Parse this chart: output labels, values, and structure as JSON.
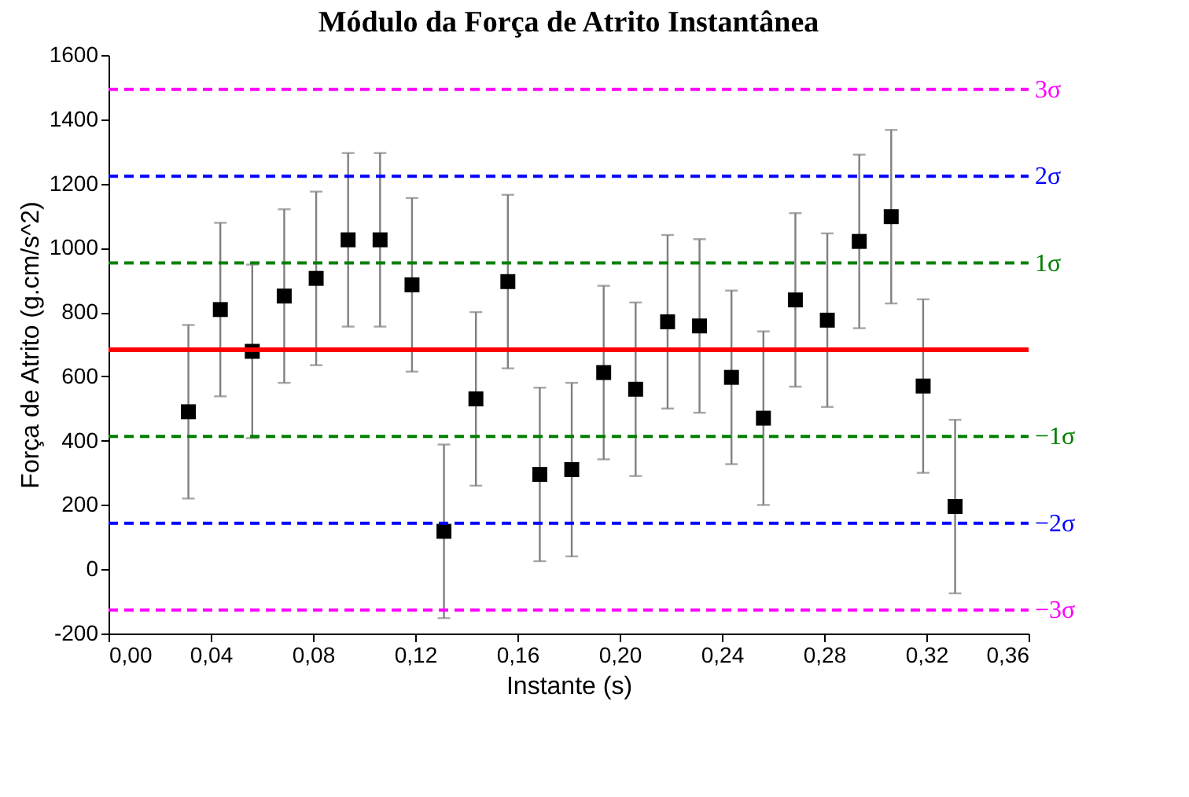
{
  "chart_data": {
    "type": "scatter",
    "title": "Módulo da Força de Atrito Instantânea",
    "xlabel": "Instante (s)",
    "ylabel": "Força de Atrito (g.cm/s^2)",
    "x": [
      0.03125,
      0.04375,
      0.05625,
      0.06875,
      0.08125,
      0.09375,
      0.10625,
      0.11875,
      0.13125,
      0.14375,
      0.15625,
      0.16875,
      0.18125,
      0.19375,
      0.20625,
      0.21875,
      0.23125,
      0.24375,
      0.25625,
      0.26875,
      0.28125,
      0.29375,
      0.30625,
      0.31875,
      0.33125
    ],
    "series": [
      {
        "color": "#000000",
        "values": [
          490,
          808,
          678,
          850,
          905,
          1025,
          1025,
          885,
          118,
          530,
          895,
          295,
          310,
          612,
          560,
          770,
          757,
          597,
          470,
          838,
          775,
          1020,
          1097,
          570,
          195
        ],
        "errors": [
          270,
          270,
          270,
          270,
          270,
          270,
          270,
          270,
          270,
          270,
          270,
          270,
          270,
          270,
          270,
          270,
          270,
          270,
          270,
          270,
          270,
          270,
          270,
          270,
          270
        ]
      }
    ],
    "marker": "square",
    "grid": false,
    "xlim": [
      0,
      0.36
    ],
    "xticks": [
      {
        "value": 0,
        "label": "0,00"
      },
      {
        "value": 0.04,
        "label": "0,04"
      },
      {
        "value": 0.08,
        "label": "0,08"
      },
      {
        "value": 0.12,
        "label": "0,12"
      },
      {
        "value": 0.16,
        "label": "0,16"
      },
      {
        "value": 0.2,
        "label": "0,20"
      },
      {
        "value": 0.24,
        "label": "0,24"
      },
      {
        "value": 0.28,
        "label": "0,28"
      },
      {
        "value": 0.32,
        "label": "0,32"
      },
      {
        "value": 0.36,
        "label": "0,36"
      }
    ],
    "ylim": [
      -200,
      1600
    ],
    "yticks": [
      -200,
      0,
      200,
      400,
      600,
      800,
      1000,
      1200,
      1400,
      1600
    ],
    "ref_lines": [
      {
        "axis": "y",
        "value": 683,
        "label": null,
        "color": "#ff0000",
        "line_style": "solid"
      },
      {
        "axis": "y",
        "value": 1493,
        "label": "3σ",
        "color": "#ff00ff",
        "line_style": "dashed"
      },
      {
        "axis": "y",
        "value": 1223,
        "label": "2σ",
        "color": "#0000ff",
        "line_style": "dashed"
      },
      {
        "axis": "y",
        "value": 953,
        "label": "1σ",
        "color": "#008000",
        "line_style": "dashed"
      },
      {
        "axis": "y",
        "value": 413,
        "label": "−1σ",
        "color": "#008000",
        "line_style": "dashed"
      },
      {
        "axis": "y",
        "value": 143,
        "label": "−2σ",
        "color": "#0000ff",
        "line_style": "dashed"
      },
      {
        "axis": "y",
        "value": -127,
        "label": "−3σ",
        "color": "#ff00ff",
        "line_style": "dashed"
      }
    ]
  }
}
